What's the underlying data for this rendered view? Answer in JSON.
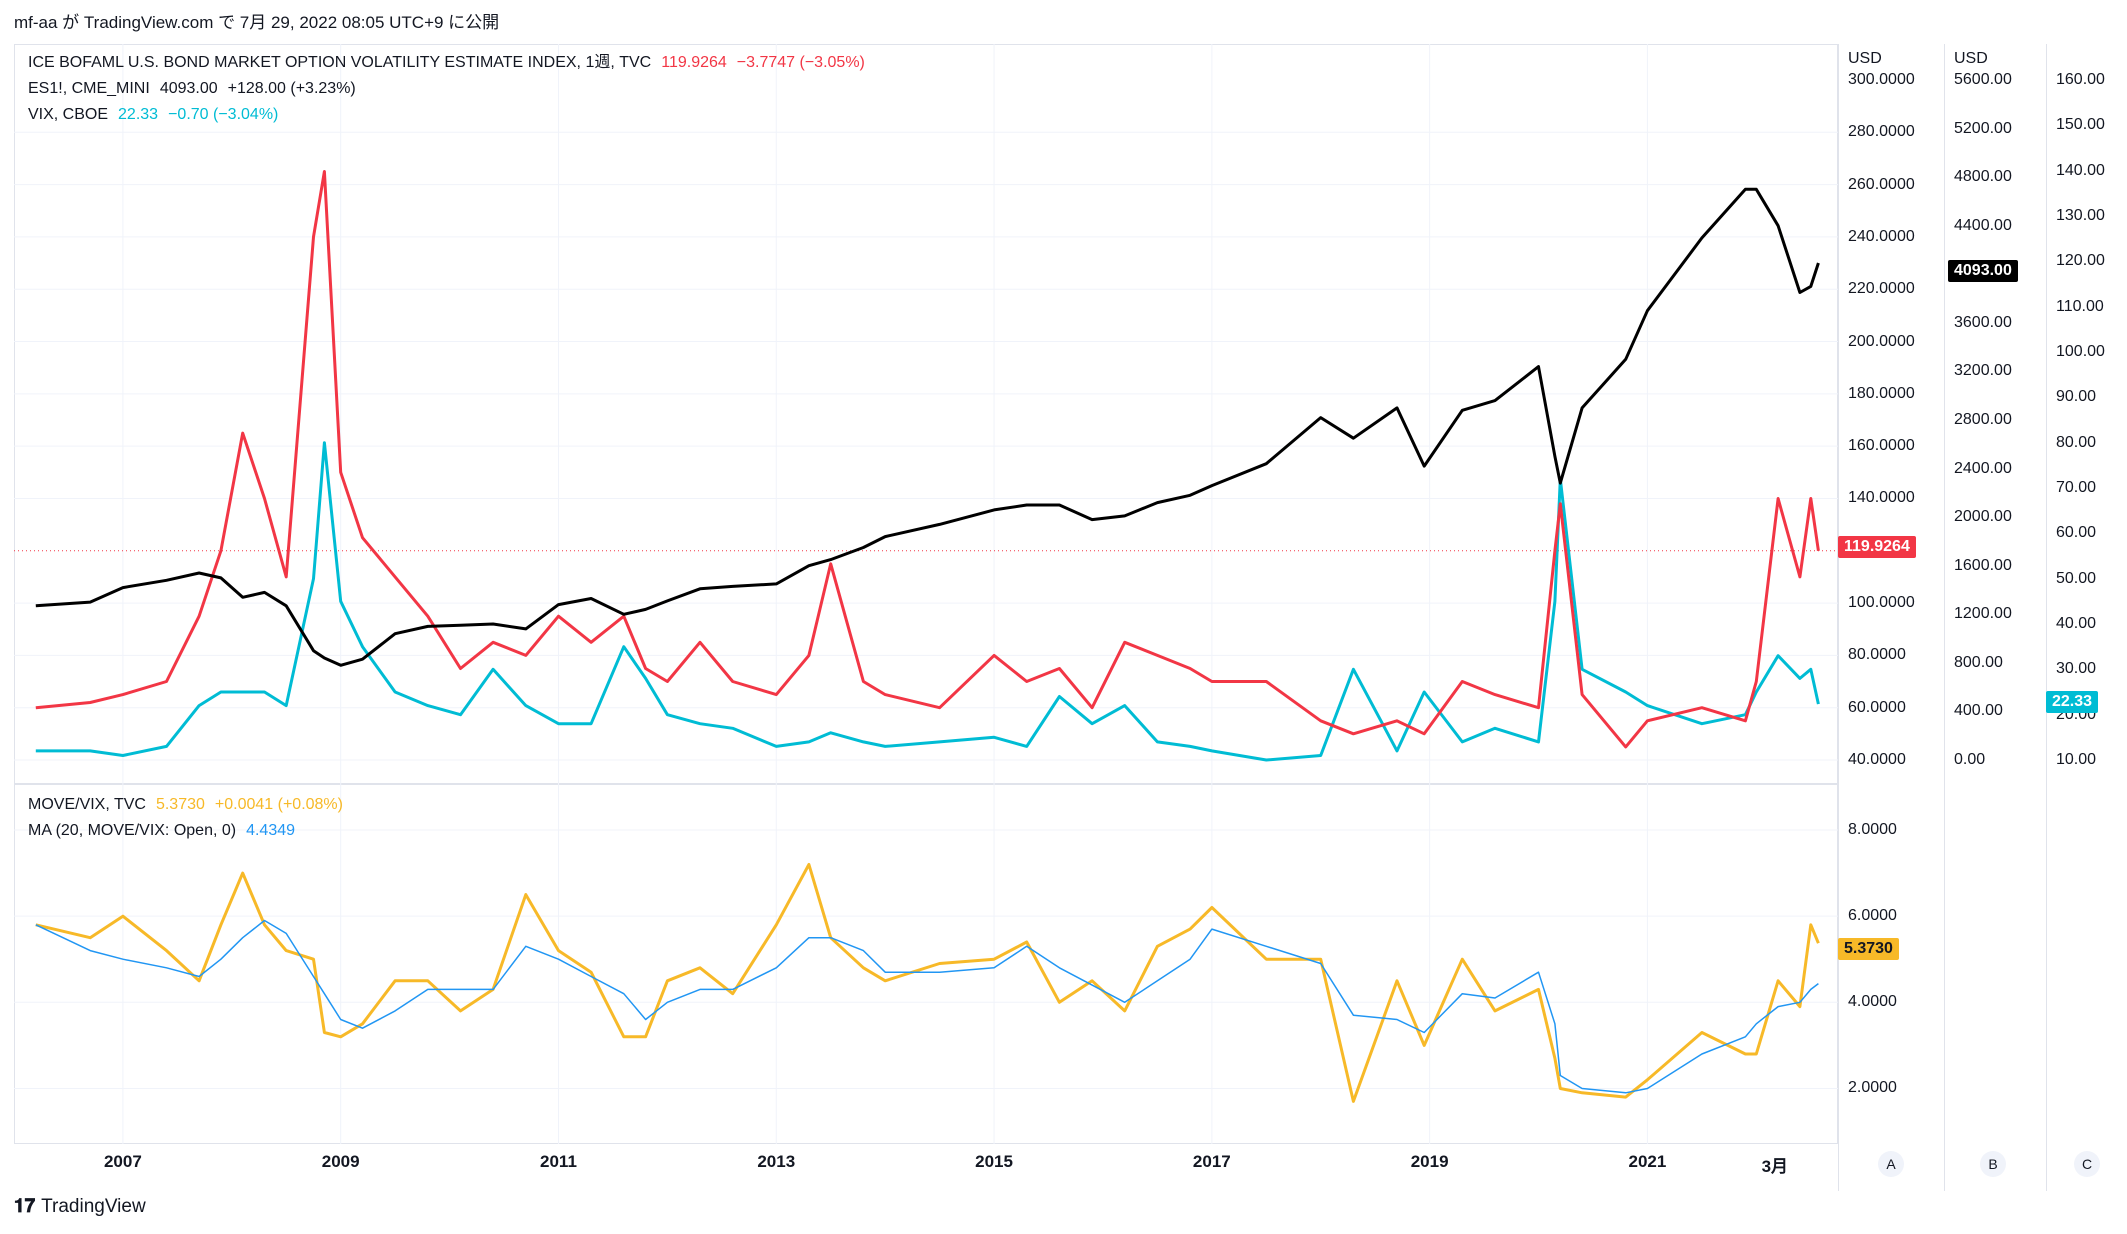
{
  "header": {
    "text": "mf-aa が TradingView.com で 7月 29, 2022 08:05 UTC+9 に公開"
  },
  "footer": {
    "brand": "TradingView"
  },
  "top_legend": [
    {
      "name": "ICE BOFAML U.S. BOND MARKET OPTION VOLATILITY ESTIMATE INDEX, 1週, TVC",
      "value": "119.9264",
      "change": "−3.7747 (−3.05%)",
      "color": "#f23645"
    },
    {
      "name": "ES1!, CME_MINI",
      "value": "4093.00",
      "change": "+128.00 (+3.23%)",
      "color": "#131722"
    },
    {
      "name": "VIX, CBOE",
      "value": "22.33",
      "change": "−0.70 (−3.04%)",
      "color": "#00bcd4"
    }
  ],
  "bottom_legend": [
    {
      "name": "MOVE/VIX, TVC",
      "value": "5.3730",
      "change": "+0.0041 (+0.08%)",
      "color": "#f7b928"
    },
    {
      "name": "MA (20, MOVE/VIX: Open, 0)",
      "value": "4.4349",
      "change": "",
      "color": "#2196f3"
    }
  ],
  "axes": {
    "move_unit": "USD",
    "es_unit": "USD",
    "move_ticks": [
      "300.0000",
      "280.0000",
      "260.0000",
      "240.0000",
      "220.0000",
      "200.0000",
      "180.0000",
      "160.0000",
      "140.0000",
      "100.0000",
      "80.0000",
      "60.0000",
      "40.0000"
    ],
    "es_ticks": [
      "5600.00",
      "5200.00",
      "4800.00",
      "4400.00",
      "3600.00",
      "3200.00",
      "2800.00",
      "2400.00",
      "2000.00",
      "1600.00",
      "1200.00",
      "800.00",
      "400.00",
      "0.00"
    ],
    "vix_ticks": [
      "160.00",
      "150.00",
      "140.00",
      "130.00",
      "120.00",
      "110.00",
      "100.00",
      "90.00",
      "80.00",
      "70.00",
      "60.00",
      "50.00",
      "40.00",
      "30.00",
      "20.00",
      "10.00"
    ],
    "ratio_ticks": [
      "8.0000",
      "6.0000",
      "4.0000",
      "2.0000"
    ],
    "x_ticks": [
      "2007",
      "2009",
      "2011",
      "2013",
      "2015",
      "2017",
      "2019",
      "2021",
      "3月"
    ],
    "scale_buttons": [
      "A",
      "B",
      "C"
    ]
  },
  "price_tags": {
    "move": {
      "label": "119.9264",
      "color": "#f23645"
    },
    "es": {
      "label": "4093.00",
      "color": "#000000"
    },
    "vix": {
      "label": "22.33",
      "color": "#00bcd4"
    },
    "ratio": {
      "label": "5.3730",
      "color": "#f7b928"
    }
  },
  "chart_data": [
    {
      "type": "line",
      "title": "ICE BOFAML U.S. BOND MARKET OPTION VOLATILITY ESTIMATE INDEX / ES1! / VIX",
      "x": [
        2006.2,
        2006.7,
        2007.0,
        2007.4,
        2007.7,
        2007.9,
        2008.1,
        2008.3,
        2008.5,
        2008.75,
        2008.85,
        2009.0,
        2009.2,
        2009.5,
        2009.8,
        2010.1,
        2010.4,
        2010.7,
        2011.0,
        2011.3,
        2011.6,
        2011.8,
        2012.0,
        2012.3,
        2012.6,
        2013.0,
        2013.3,
        2013.5,
        2013.8,
        2014.0,
        2014.5,
        2015.0,
        2015.3,
        2015.6,
        2015.9,
        2016.2,
        2016.5,
        2016.8,
        2017.0,
        2017.5,
        2018.0,
        2018.3,
        2018.7,
        2018.95,
        2019.3,
        2019.6,
        2020.0,
        2020.15,
        2020.2,
        2020.4,
        2020.8,
        2021.0,
        2021.5,
        2021.9,
        2022.0,
        2022.2,
        2022.4,
        2022.5,
        2022.57
      ],
      "series": [
        {
          "name": "MOVE",
          "axis": "left",
          "color": "#f23645",
          "values": [
            60,
            62,
            65,
            70,
            95,
            120,
            165,
            140,
            110,
            240,
            265,
            150,
            125,
            110,
            95,
            75,
            85,
            80,
            95,
            85,
            95,
            75,
            70,
            85,
            70,
            65,
            80,
            115,
            70,
            65,
            60,
            80,
            70,
            75,
            60,
            85,
            80,
            75,
            70,
            70,
            55,
            50,
            55,
            50,
            70,
            65,
            60,
            120,
            138,
            65,
            45,
            55,
            60,
            55,
            70,
            140,
            110,
            140,
            120
          ]
        },
        {
          "name": "ES1!",
          "axis": "es",
          "color": "#000000",
          "values": [
            1270,
            1300,
            1420,
            1480,
            1540,
            1500,
            1340,
            1380,
            1270,
            900,
            840,
            780,
            830,
            1040,
            1100,
            1110,
            1120,
            1080,
            1280,
            1330,
            1200,
            1240,
            1310,
            1410,
            1430,
            1450,
            1600,
            1650,
            1750,
            1840,
            1940,
            2060,
            2100,
            2100,
            1980,
            2010,
            2120,
            2180,
            2260,
            2440,
            2820,
            2650,
            2900,
            2420,
            2880,
            2960,
            3240,
            2500,
            2280,
            2900,
            3300,
            3700,
            4300,
            4700,
            4700,
            4400,
            3850,
            3900,
            4093
          ]
        },
        {
          "name": "VIX",
          "axis": "vix",
          "color": "#00bcd4",
          "values": [
            12,
            12,
            11,
            13,
            22,
            25,
            25,
            25,
            22,
            50,
            80,
            45,
            35,
            25,
            22,
            20,
            30,
            22,
            18,
            18,
            35,
            28,
            20,
            18,
            17,
            13,
            14,
            16,
            14,
            13,
            14,
            15,
            13,
            24,
            18,
            22,
            14,
            13,
            12,
            10,
            11,
            30,
            12,
            25,
            14,
            17,
            14,
            45,
            72,
            30,
            25,
            22,
            18,
            20,
            25,
            33,
            28,
            30,
            22.33
          ]
        },
        {
          "name": "MOVE/VIX",
          "axis": "ratio",
          "color": "#f7b928",
          "values": [
            5.8,
            5.5,
            6.0,
            5.2,
            4.5,
            5.8,
            7.0,
            5.8,
            5.2,
            5.0,
            3.3,
            3.2,
            3.5,
            4.5,
            4.5,
            3.8,
            4.3,
            6.5,
            5.2,
            4.7,
            3.2,
            3.2,
            4.5,
            4.8,
            4.2,
            5.8,
            7.2,
            5.5,
            4.8,
            4.5,
            4.9,
            5.0,
            5.4,
            4.0,
            4.5,
            3.8,
            5.3,
            5.7,
            6.2,
            5.0,
            5.0,
            1.7,
            4.5,
            3.0,
            5.0,
            3.8,
            4.3,
            2.7,
            2.0,
            1.9,
            1.8,
            2.2,
            3.3,
            2.8,
            2.8,
            4.5,
            3.9,
            5.8,
            5.373
          ]
        },
        {
          "name": "MA (20, MOVE/VIX: Open, 0)",
          "axis": "ratio",
          "color": "#2196f3",
          "values": [
            5.8,
            5.2,
            5.0,
            4.8,
            4.6,
            5.0,
            5.5,
            5.9,
            5.6,
            4.6,
            4.2,
            3.6,
            3.4,
            3.8,
            4.3,
            4.3,
            4.3,
            5.3,
            5.0,
            4.6,
            4.2,
            3.6,
            4.0,
            4.3,
            4.3,
            4.8,
            5.5,
            5.5,
            5.2,
            4.7,
            4.7,
            4.8,
            5.3,
            4.8,
            4.4,
            4.0,
            4.5,
            5.0,
            5.7,
            5.3,
            4.9,
            3.7,
            3.6,
            3.3,
            4.2,
            4.1,
            4.7,
            3.5,
            2.3,
            2.0,
            1.9,
            2.0,
            2.8,
            3.2,
            3.5,
            3.9,
            4.0,
            4.3,
            4.4349
          ]
        }
      ],
      "axes_ranges": {
        "left": [
          40,
          300
        ],
        "es": [
          0,
          5600
        ],
        "vix": [
          10,
          160
        ],
        "ratio": [
          1.5,
          8.0
        ],
        "x": [
          2006.0,
          2022.75
        ]
      }
    }
  ]
}
